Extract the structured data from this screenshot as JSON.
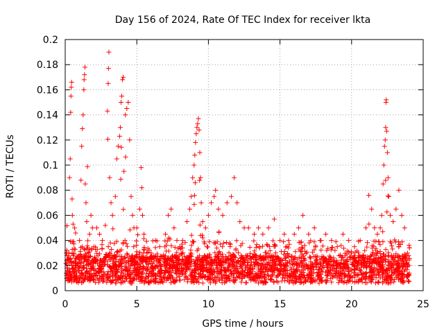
{
  "chart_data": {
    "type": "scatter",
    "title": "Day 156 of 2024, Rate Of TEC Index for receiver lkta",
    "xlabel": "GPS time / hours",
    "ylabel": "ROTI / TECUs",
    "xlim": [
      0,
      25
    ],
    "ylim": [
      0,
      0.2
    ],
    "xticks": [
      0,
      5,
      10,
      15,
      20,
      25
    ],
    "xtick_labels": [
      "0",
      "5",
      "10",
      "15",
      "20",
      "25"
    ],
    "yticks": [
      0,
      0.02,
      0.04,
      0.06,
      0.08,
      0.1,
      0.12,
      0.14,
      0.16,
      0.18,
      0.2
    ],
    "ytick_labels": [
      "0",
      "0.02",
      "0.04",
      "0.06",
      "0.08",
      "0.1",
      "0.12",
      "0.14",
      "0.16",
      "0.18",
      "0.2"
    ],
    "grid": true,
    "marker": "+",
    "color": "#ff0000",
    "points": [
      [
        0.1,
        0.012
      ],
      [
        0.15,
        0.018
      ],
      [
        0.2,
        0.025
      ],
      [
        0.25,
        0.03
      ],
      [
        0.3,
        0.09
      ],
      [
        0.35,
        0.105
      ],
      [
        0.38,
        0.142
      ],
      [
        0.4,
        0.155
      ],
      [
        0.42,
        0.162
      ],
      [
        0.45,
        0.166
      ],
      [
        0.48,
        0.073
      ],
      [
        0.5,
        0.06
      ],
      [
        0.55,
        0.053
      ],
      [
        0.6,
        0.03
      ],
      [
        0.7,
        0.02
      ],
      [
        0.8,
        0.015
      ],
      [
        1.0,
        0.04
      ],
      [
        1.1,
        0.088
      ],
      [
        1.15,
        0.115
      ],
      [
        1.2,
        0.129
      ],
      [
        1.25,
        0.14
      ],
      [
        1.3,
        0.16
      ],
      [
        1.32,
        0.168
      ],
      [
        1.35,
        0.172
      ],
      [
        1.38,
        0.178
      ],
      [
        1.4,
        0.085
      ],
      [
        1.45,
        0.07
      ],
      [
        1.5,
        0.055
      ],
      [
        1.6,
        0.03
      ],
      [
        1.7,
        0.045
      ],
      [
        1.8,
        0.06
      ],
      [
        1.9,
        0.05
      ],
      [
        2.0,
        0.035
      ],
      [
        2.2,
        0.05
      ],
      [
        2.4,
        0.045
      ],
      [
        2.6,
        0.04
      ],
      [
        2.8,
        0.052
      ],
      [
        2.95,
        0.143
      ],
      [
        3.0,
        0.165
      ],
      [
        3.02,
        0.177
      ],
      [
        3.05,
        0.19
      ],
      [
        3.1,
        0.09
      ],
      [
        3.2,
        0.07
      ],
      [
        3.3,
        0.06
      ],
      [
        3.5,
        0.075
      ],
      [
        3.6,
        0.105
      ],
      [
        3.7,
        0.115
      ],
      [
        3.8,
        0.123
      ],
      [
        3.85,
        0.13
      ],
      [
        3.9,
        0.15
      ],
      [
        3.95,
        0.155
      ],
      [
        4.0,
        0.168
      ],
      [
        4.05,
        0.17
      ],
      [
        4.1,
        0.095
      ],
      [
        4.2,
        0.14
      ],
      [
        4.3,
        0.145
      ],
      [
        4.4,
        0.15
      ],
      [
        4.5,
        0.12
      ],
      [
        4.6,
        0.075
      ],
      [
        4.7,
        0.06
      ],
      [
        4.8,
        0.05
      ],
      [
        5.0,
        0.05
      ],
      [
        5.2,
        0.065
      ],
      [
        5.3,
        0.098
      ],
      [
        5.35,
        0.082
      ],
      [
        5.4,
        0.06
      ],
      [
        5.5,
        0.045
      ],
      [
        5.7,
        0.03
      ],
      [
        6.0,
        0.03
      ],
      [
        6.3,
        0.04
      ],
      [
        6.6,
        0.035
      ],
      [
        7.0,
        0.045
      ],
      [
        7.2,
        0.06
      ],
      [
        7.4,
        0.065
      ],
      [
        7.6,
        0.05
      ],
      [
        7.8,
        0.04
      ],
      [
        8.0,
        0.035
      ],
      [
        8.2,
        0.04
      ],
      [
        8.5,
        0.055
      ],
      [
        8.7,
        0.065
      ],
      [
        8.8,
        0.075
      ],
      [
        8.9,
        0.09
      ],
      [
        9.0,
        0.1
      ],
      [
        9.05,
        0.108
      ],
      [
        9.1,
        0.118
      ],
      [
        9.15,
        0.125
      ],
      [
        9.2,
        0.13
      ],
      [
        9.25,
        0.133
      ],
      [
        9.3,
        0.137
      ],
      [
        9.35,
        0.128
      ],
      [
        9.4,
        0.11
      ],
      [
        9.45,
        0.09
      ],
      [
        9.5,
        0.07
      ],
      [
        9.6,
        0.055
      ],
      [
        9.8,
        0.05
      ],
      [
        10.0,
        0.06
      ],
      [
        10.2,
        0.07
      ],
      [
        10.4,
        0.075
      ],
      [
        10.5,
        0.08
      ],
      [
        10.7,
        0.065
      ],
      [
        11.0,
        0.06
      ],
      [
        11.3,
        0.07
      ],
      [
        11.6,
        0.075
      ],
      [
        11.8,
        0.09
      ],
      [
        12.0,
        0.07
      ],
      [
        12.2,
        0.055
      ],
      [
        12.5,
        0.05
      ],
      [
        12.8,
        0.05
      ],
      [
        13.2,
        0.045
      ],
      [
        13.5,
        0.05
      ],
      [
        13.8,
        0.045
      ],
      [
        14.2,
        0.05
      ],
      [
        14.6,
        0.057
      ],
      [
        15.0,
        0.04
      ],
      [
        15.3,
        0.045
      ],
      [
        15.6,
        0.04
      ],
      [
        16.0,
        0.045
      ],
      [
        16.3,
        0.05
      ],
      [
        16.6,
        0.06
      ],
      [
        17.0,
        0.045
      ],
      [
        17.4,
        0.05
      ],
      [
        17.8,
        0.04
      ],
      [
        18.2,
        0.045
      ],
      [
        18.6,
        0.04
      ],
      [
        19.0,
        0.035
      ],
      [
        19.4,
        0.045
      ],
      [
        19.8,
        0.04
      ],
      [
        20.2,
        0.035
      ],
      [
        20.6,
        0.04
      ],
      [
        21.0,
        0.05
      ],
      [
        21.2,
        0.076
      ],
      [
        21.4,
        0.065
      ],
      [
        21.6,
        0.05
      ],
      [
        21.8,
        0.045
      ],
      [
        22.0,
        0.05
      ],
      [
        22.1,
        0.06
      ],
      [
        22.2,
        0.085
      ],
      [
        22.25,
        0.1
      ],
      [
        22.3,
        0.115
      ],
      [
        22.35,
        0.12
      ],
      [
        22.38,
        0.13
      ],
      [
        22.4,
        0.15
      ],
      [
        22.42,
        0.152
      ],
      [
        22.45,
        0.127
      ],
      [
        22.5,
        0.11
      ],
      [
        22.55,
        0.09
      ],
      [
        22.6,
        0.075
      ],
      [
        22.7,
        0.06
      ],
      [
        22.9,
        0.055
      ],
      [
        23.1,
        0.065
      ],
      [
        23.3,
        0.08
      ],
      [
        23.5,
        0.06
      ],
      [
        23.7,
        0.05
      ],
      [
        23.9,
        0.03
      ],
      [
        24.0,
        0.02
      ]
    ]
  }
}
